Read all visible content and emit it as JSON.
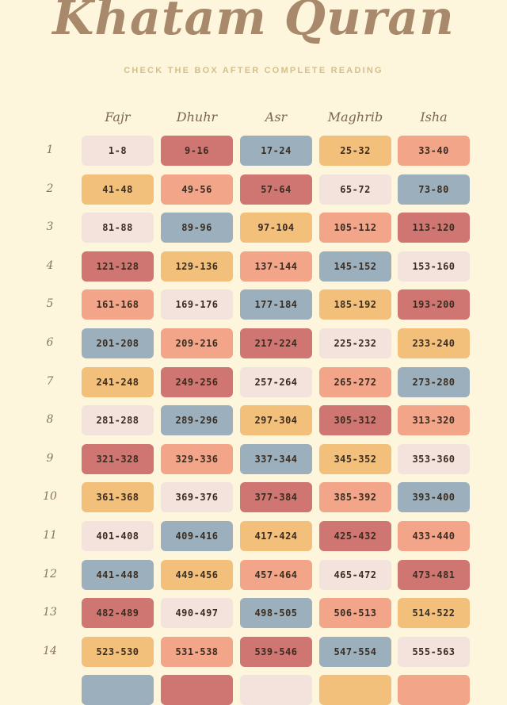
{
  "title": "Khatam Quran",
  "subtitle": "CHECK THE BOX AFTER COMPLETE READING",
  "colors": {
    "background": "#fdf6dc",
    "blush": "#f3e3dc",
    "rose": "#cf7672",
    "slate": "#9bb0bc",
    "mustard": "#f2c07a",
    "salmon": "#f3a58a"
  },
  "headers": [
    "Fajr",
    "Dhuhr",
    "Asr",
    "Maghrib",
    "Isha"
  ],
  "rows": [
    {
      "num": "1",
      "cells": [
        {
          "label": "1-8",
          "color": "blush"
        },
        {
          "label": "9-16",
          "color": "rose"
        },
        {
          "label": "17-24",
          "color": "slate"
        },
        {
          "label": "25-32",
          "color": "mustard"
        },
        {
          "label": "33-40",
          "color": "salmon"
        }
      ]
    },
    {
      "num": "2",
      "cells": [
        {
          "label": "41-48",
          "color": "mustard"
        },
        {
          "label": "49-56",
          "color": "salmon"
        },
        {
          "label": "57-64",
          "color": "rose"
        },
        {
          "label": "65-72",
          "color": "blush"
        },
        {
          "label": "73-80",
          "color": "slate"
        }
      ]
    },
    {
      "num": "3",
      "cells": [
        {
          "label": "81-88",
          "color": "blush"
        },
        {
          "label": "89-96",
          "color": "slate"
        },
        {
          "label": "97-104",
          "color": "mustard"
        },
        {
          "label": "105-112",
          "color": "salmon"
        },
        {
          "label": "113-120",
          "color": "rose"
        }
      ]
    },
    {
      "num": "4",
      "cells": [
        {
          "label": "121-128",
          "color": "rose"
        },
        {
          "label": "129-136",
          "color": "mustard"
        },
        {
          "label": "137-144",
          "color": "salmon"
        },
        {
          "label": "145-152",
          "color": "slate"
        },
        {
          "label": "153-160",
          "color": "blush"
        }
      ]
    },
    {
      "num": "5",
      "cells": [
        {
          "label": "161-168",
          "color": "salmon"
        },
        {
          "label": "169-176",
          "color": "blush"
        },
        {
          "label": "177-184",
          "color": "slate"
        },
        {
          "label": "185-192",
          "color": "mustard"
        },
        {
          "label": "193-200",
          "color": "rose"
        }
      ]
    },
    {
      "num": "6",
      "cells": [
        {
          "label": "201-208",
          "color": "slate"
        },
        {
          "label": "209-216",
          "color": "salmon"
        },
        {
          "label": "217-224",
          "color": "rose"
        },
        {
          "label": "225-232",
          "color": "blush"
        },
        {
          "label": "233-240",
          "color": "mustard"
        }
      ]
    },
    {
      "num": "7",
      "cells": [
        {
          "label": "241-248",
          "color": "mustard"
        },
        {
          "label": "249-256",
          "color": "rose"
        },
        {
          "label": "257-264",
          "color": "blush"
        },
        {
          "label": "265-272",
          "color": "salmon"
        },
        {
          "label": "273-280",
          "color": "slate"
        }
      ]
    },
    {
      "num": "8",
      "cells": [
        {
          "label": "281-288",
          "color": "blush"
        },
        {
          "label": "289-296",
          "color": "slate"
        },
        {
          "label": "297-304",
          "color": "mustard"
        },
        {
          "label": "305-312",
          "color": "rose"
        },
        {
          "label": "313-320",
          "color": "salmon"
        }
      ]
    },
    {
      "num": "9",
      "cells": [
        {
          "label": "321-328",
          "color": "rose"
        },
        {
          "label": "329-336",
          "color": "salmon"
        },
        {
          "label": "337-344",
          "color": "slate"
        },
        {
          "label": "345-352",
          "color": "mustard"
        },
        {
          "label": "353-360",
          "color": "blush"
        }
      ]
    },
    {
      "num": "10",
      "cells": [
        {
          "label": "361-368",
          "color": "mustard"
        },
        {
          "label": "369-376",
          "color": "blush"
        },
        {
          "label": "377-384",
          "color": "rose"
        },
        {
          "label": "385-392",
          "color": "salmon"
        },
        {
          "label": "393-400",
          "color": "slate"
        }
      ]
    },
    {
      "num": "11",
      "cells": [
        {
          "label": "401-408",
          "color": "blush"
        },
        {
          "label": "409-416",
          "color": "slate"
        },
        {
          "label": "417-424",
          "color": "mustard"
        },
        {
          "label": "425-432",
          "color": "rose"
        },
        {
          "label": "433-440",
          "color": "salmon"
        }
      ]
    },
    {
      "num": "12",
      "cells": [
        {
          "label": "441-448",
          "color": "slate"
        },
        {
          "label": "449-456",
          "color": "mustard"
        },
        {
          "label": "457-464",
          "color": "salmon"
        },
        {
          "label": "465-472",
          "color": "blush"
        },
        {
          "label": "473-481",
          "color": "rose"
        }
      ]
    },
    {
      "num": "13",
      "cells": [
        {
          "label": "482-489",
          "color": "rose"
        },
        {
          "label": "490-497",
          "color": "blush"
        },
        {
          "label": "498-505",
          "color": "slate"
        },
        {
          "label": "506-513",
          "color": "salmon"
        },
        {
          "label": "514-522",
          "color": "mustard"
        }
      ]
    },
    {
      "num": "14",
      "cells": [
        {
          "label": "523-530",
          "color": "mustard"
        },
        {
          "label": "531-538",
          "color": "salmon"
        },
        {
          "label": "539-546",
          "color": "rose"
        },
        {
          "label": "547-554",
          "color": "slate"
        },
        {
          "label": "555-563",
          "color": "blush"
        }
      ]
    },
    {
      "num": "",
      "cells": [
        {
          "label": "",
          "color": "slate"
        },
        {
          "label": "",
          "color": "rose"
        },
        {
          "label": "",
          "color": "blush"
        },
        {
          "label": "",
          "color": "mustard"
        },
        {
          "label": "",
          "color": "salmon"
        }
      ]
    }
  ]
}
